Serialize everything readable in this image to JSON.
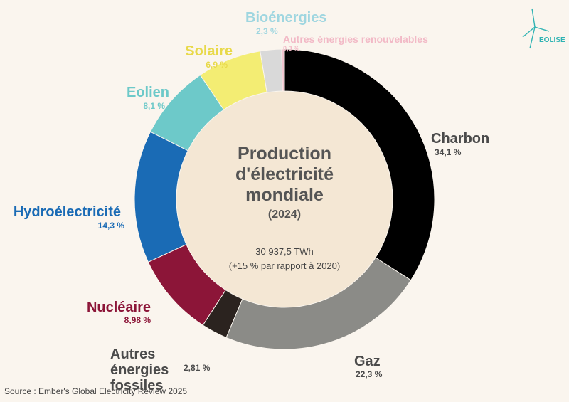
{
  "chart_data": {
    "type": "pie",
    "donut": true,
    "title": "Production d'électricité mondiale",
    "subtitle": "(2024)",
    "annotations": [
      "30 937,5 TWh",
      "(+15 % par rapport à 2020)"
    ],
    "categories": [
      "Charbon",
      "Gaz",
      "Autres énergies fossiles",
      "Nucléaire",
      "Hydroélectricité",
      "Eolien",
      "Solaire",
      "Bioénergies",
      "Autres énergies renouvelables"
    ],
    "values": [
      34.1,
      22.3,
      2.81,
      8.98,
      14.3,
      8.1,
      6.9,
      2.3,
      0.3
    ],
    "value_labels": [
      "34,1 %",
      "22,3 %",
      "2,81 %",
      "8,98 %",
      "14,3 %",
      "8,1 %",
      "6,9 %",
      "2,3 %",
      "0,3 %"
    ],
    "colors": [
      "#000000",
      "#8b8b87",
      "#2b231f",
      "#8c1538",
      "#1a6bb5",
      "#6dc9c9",
      "#f3ed73",
      "#d9d9d9",
      "#f2c4cf"
    ],
    "label_colors": [
      "#4a4a4a",
      "#4a4a4a",
      "#4a4a4a",
      "#8c1538",
      "#1a6bb5",
      "#6dc9c9",
      "#e8d94a",
      "#9fd6e0",
      "#f2b9c6"
    ],
    "source": "Source : Ember's Global Electricity Review 2025",
    "logo": "EOLISE"
  }
}
